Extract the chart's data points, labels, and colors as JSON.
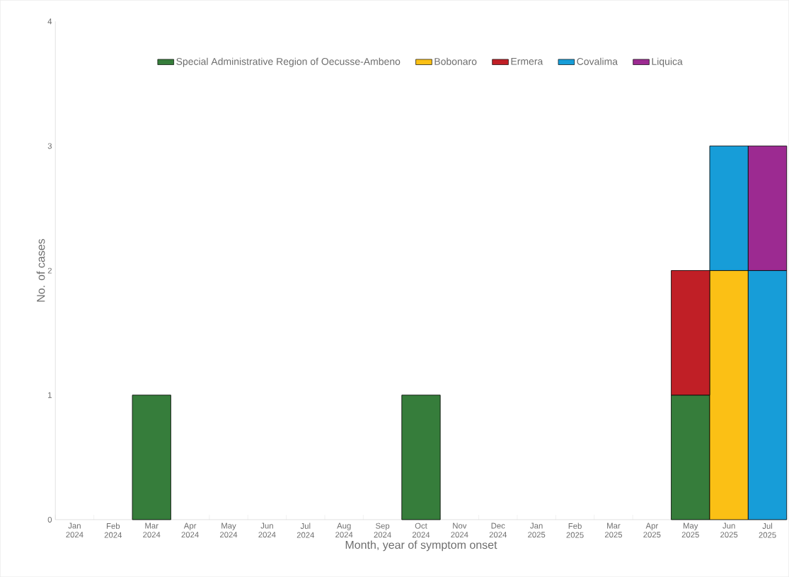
{
  "chart_data": {
    "type": "bar",
    "stacked": true,
    "xlabel": "Month, year of symptom onset",
    "ylabel": "No. of cases",
    "categories": [
      "Jan 2024",
      "Feb 2024",
      "Mar 2024",
      "Apr 2024",
      "May 2024",
      "Jun 2024",
      "Jul 2024",
      "Aug 2024",
      "Sep 2024",
      "Oct 2024",
      "Nov 2024",
      "Dec 2024",
      "Jan 2025",
      "Feb 2025",
      "Mar 2025",
      "Apr 2025",
      "May 2025",
      "Jun 2025",
      "Jul 2025"
    ],
    "series": [
      {
        "name": "Special Administrative Region of Oecusse-Ambeno",
        "color": "#367d3b",
        "values": [
          null,
          null,
          1,
          null,
          null,
          null,
          null,
          null,
          null,
          1,
          null,
          null,
          null,
          null,
          null,
          null,
          1,
          null,
          null
        ]
      },
      {
        "name": "Bobonaro",
        "color": "#fbc015",
        "values": [
          null,
          null,
          null,
          null,
          null,
          null,
          null,
          null,
          null,
          null,
          null,
          null,
          null,
          null,
          null,
          null,
          null,
          2,
          null
        ]
      },
      {
        "name": "Ermera",
        "color": "#c01f26",
        "values": [
          null,
          null,
          null,
          null,
          null,
          null,
          null,
          null,
          null,
          null,
          null,
          null,
          null,
          null,
          null,
          null,
          1,
          null,
          null
        ]
      },
      {
        "name": "Covalima",
        "color": "#179dd8",
        "values": [
          null,
          null,
          null,
          null,
          null,
          null,
          null,
          null,
          null,
          null,
          null,
          null,
          null,
          null,
          null,
          null,
          null,
          1,
          2
        ]
      },
      {
        "name": "Liquica",
        "color": "#9c2a91",
        "values": [
          null,
          null,
          null,
          null,
          null,
          null,
          null,
          null,
          null,
          null,
          null,
          null,
          null,
          null,
          null,
          null,
          null,
          null,
          1
        ]
      }
    ],
    "ylim": [
      0,
      4
    ],
    "yticks": [
      0,
      1,
      2,
      3,
      4
    ],
    "grid": false,
    "legend": "top"
  }
}
